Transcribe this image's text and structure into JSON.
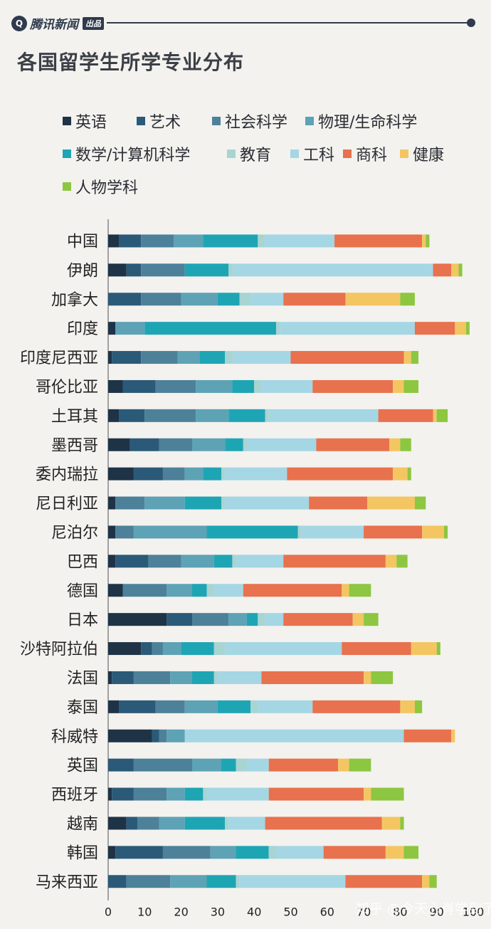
{
  "header": {
    "brand_icon": "Q",
    "brand_name": "腾讯新闻",
    "brand_tag": "出品"
  },
  "chart_data": {
    "type": "bar",
    "orientation": "horizontal",
    "stacked": true,
    "title": "各国留学生所学专业分布",
    "xlim": [
      0,
      100
    ],
    "xticks": [
      0,
      10,
      20,
      30,
      40,
      50,
      60,
      70,
      80,
      90,
      100
    ],
    "grid": false,
    "legend_position": "top",
    "categories": [
      "中国",
      "伊朗",
      "加拿大",
      "印度",
      "印度尼西亚",
      "哥伦比亚",
      "土耳其",
      "墨西哥",
      "委内瑞拉",
      "尼日利亚",
      "尼泊尔",
      "巴西",
      "德国",
      "日本",
      "沙特阿拉伯",
      "法国",
      "泰国",
      "科威特",
      "英国",
      "西班牙",
      "越南",
      "韩国",
      "马来西亚"
    ],
    "series": [
      {
        "name": "英语",
        "color": "#1f3347",
        "values": [
          3,
          5,
          0,
          2,
          1,
          4,
          3,
          6,
          7,
          2,
          2,
          2,
          4,
          16,
          9,
          1,
          3,
          12,
          0,
          1,
          5,
          2,
          0
        ]
      },
      {
        "name": "艺术",
        "color": "#2b5a78",
        "values": [
          6,
          4,
          9,
          0,
          8,
          9,
          7,
          8,
          8,
          0,
          0,
          9,
          0,
          7,
          3,
          6,
          10,
          2,
          7,
          6,
          3,
          13,
          5
        ]
      },
      {
        "name": "社会科学",
        "color": "#4d8199",
        "values": [
          9,
          12,
          11,
          0,
          10,
          11,
          14,
          9,
          6,
          8,
          5,
          9,
          12,
          10,
          3,
          10,
          8,
          2,
          16,
          9,
          6,
          13,
          12
        ]
      },
      {
        "name": "物理/生命科学",
        "color": "#5ea2b5",
        "values": [
          8,
          0,
          10,
          8,
          6,
          10,
          9,
          9,
          5,
          11,
          20,
          9,
          7,
          5,
          5,
          6,
          9,
          5,
          8,
          5,
          7,
          7,
          10
        ]
      },
      {
        "name": "数学/计算机科学",
        "color": "#1ea5b4",
        "values": [
          15,
          12,
          6,
          36,
          7,
          6,
          10,
          5,
          5,
          10,
          25,
          5,
          4,
          3,
          9,
          6,
          9,
          0,
          4,
          5,
          11,
          9,
          8
        ]
      },
      {
        "name": "教育",
        "color": "#a8d4d2",
        "values": [
          2,
          1,
          3,
          1,
          2,
          2,
          1,
          1,
          1,
          1,
          1,
          1,
          2,
          2,
          3,
          1,
          2,
          0,
          3,
          1,
          1,
          2,
          1
        ]
      },
      {
        "name": "工科",
        "color": "#a5d6e4",
        "values": [
          19,
          55,
          9,
          37,
          16,
          14,
          30,
          19,
          17,
          23,
          17,
          13,
          8,
          5,
          32,
          12,
          15,
          60,
          6,
          17,
          10,
          13,
          29
        ]
      },
      {
        "name": "商科",
        "color": "#e8714e",
        "values": [
          24,
          5,
          17,
          11,
          31,
          22,
          15,
          20,
          29,
          16,
          16,
          28,
          27,
          19,
          19,
          28,
          24,
          13,
          19,
          26,
          32,
          17,
          21
        ]
      },
      {
        "name": "健康",
        "color": "#f3c662",
        "values": [
          1,
          2,
          15,
          3,
          2,
          3,
          1,
          3,
          4,
          13,
          6,
          3,
          2,
          3,
          7,
          2,
          4,
          1,
          3,
          2,
          5,
          5,
          2
        ]
      },
      {
        "name": "人物学科",
        "color": "#8dc640",
        "values": [
          1,
          1,
          4,
          1,
          2,
          4,
          3,
          3,
          1,
          3,
          1,
          3,
          6,
          4,
          1,
          6,
          2,
          0,
          6,
          9,
          1,
          4,
          2
        ]
      }
    ]
  },
  "watermark": "知乎 @今天心肖学到了吗"
}
